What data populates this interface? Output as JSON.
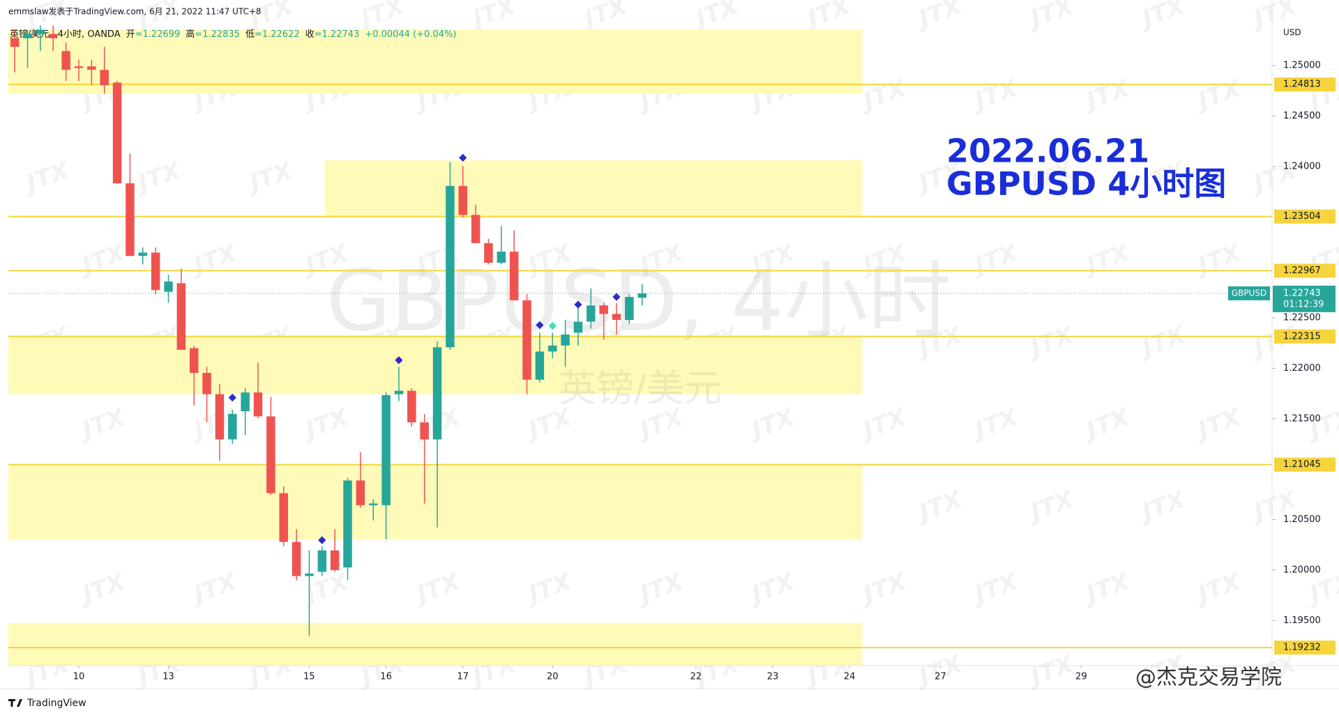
{
  "header": {
    "author_line": "emmslaw发表于TradingView.com,  6月 21, 2022 11:47 UTC+8",
    "symbol_line": "英镑/美元 · 4小时, OANDA",
    "ohlc": [
      {
        "label": "开",
        "value": "=1.22699"
      },
      {
        "label": "高",
        "value": "=1.22835"
      },
      {
        "label": "低",
        "value": "=1.22622"
      },
      {
        "label": "收",
        "value": "=1.22743"
      }
    ],
    "change": "+0.00044 (+0.04%)"
  },
  "footer": {
    "brand": "TradingView",
    "credit": "@杰克交易学院"
  },
  "chart_data": {
    "type": "candlestick",
    "watermark": "GBPUSD, 4小时",
    "watermark_sub": "英镑/美元",
    "logo_watermark": "JTX",
    "annotation": [
      "2022.06.21",
      "GBPUSD 4小时图"
    ],
    "annotation_color": "#1a2ed8",
    "y_unit": "USD",
    "open": [
      1.25271,
      1.25271,
      1.25313,
      1.25313,
      1.25144,
      1.24992,
      1.24992,
      1.24958,
      1.24831,
      1.23833,
      1.23113,
      1.23147,
      1.22758,
      1.22843,
      1.222,
      1.21954,
      1.21743,
      1.21295,
      1.21574,
      1.2176,
      1.21523,
      1.20762,
      1.20279,
      1.19941,
      1.19983,
      1.20195,
      1.20026,
      1.20888,
      1.20643,
      1.20643,
      1.21743,
      1.21777,
      1.21464,
      1.21295,
      1.22208,
      1.23807,
      1.2352,
      1.2324,
      1.23046,
      1.23156,
      1.22674,
      1.21887,
      1.22166,
      1.22225,
      1.22352,
      1.22462,
      1.22623,
      1.22539,
      1.22479,
      1.22699
    ],
    "high": [
      1.25355,
      1.25355,
      1.25398,
      1.25398,
      1.25228,
      1.25059,
      1.25059,
      1.25186,
      1.24848,
      1.24129,
      1.23198,
      1.23198,
      1.22927,
      1.22987,
      1.22225,
      1.22014,
      1.21844,
      1.2159,
      1.21802,
      1.22056,
      1.21717,
      1.20829,
      1.20406,
      1.20195,
      1.20237,
      1.20406,
      1.20914,
      1.21168,
      1.20702,
      1.2176,
      1.22014,
      1.21802,
      1.21548,
      1.22267,
      1.24044,
      1.24002,
      1.23621,
      1.23283,
      1.2341,
      1.23367,
      1.22733,
      1.22352,
      1.22352,
      1.22479,
      1.22648,
      1.22792,
      1.22648,
      1.22648,
      1.22733,
      1.22835
    ],
    "low": [
      1.24932,
      1.24975,
      1.25144,
      1.25144,
      1.24848,
      1.24848,
      1.24805,
      1.24721,
      1.23833,
      1.23113,
      1.23029,
      1.22733,
      1.22648,
      1.22183,
      1.21633,
      1.21464,
      1.21083,
      1.21252,
      1.21337,
      1.21506,
      1.20745,
      1.20237,
      1.19899,
      1.19349,
      1.19941,
      1.19983,
      1.19899,
      1.20618,
      1.20491,
      1.20305,
      1.21675,
      1.21421,
      1.2066,
      1.20423,
      1.22183,
      1.23494,
      1.2324,
      1.23029,
      1.23029,
      1.22674,
      1.21743,
      1.21861,
      1.22098,
      1.22014,
      1.22225,
      1.22394,
      1.22284,
      1.22335,
      1.22437,
      1.22622
    ],
    "close": [
      1.25186,
      1.25313,
      1.25355,
      1.25271,
      1.24958,
      1.24975,
      1.24958,
      1.24805,
      1.23833,
      1.23113,
      1.23147,
      1.22775,
      1.2286,
      1.22183,
      1.21954,
      1.21743,
      1.21295,
      1.21548,
      1.2176,
      1.21523,
      1.20762,
      1.20279,
      1.19941,
      1.19966,
      1.20195,
      1.2,
      1.20888,
      1.20643,
      1.2066,
      1.21734,
      1.21777,
      1.21464,
      1.21295,
      1.22208,
      1.23807,
      1.2352,
      1.2324,
      1.23046,
      1.23156,
      1.22674,
      1.21887,
      1.22166,
      1.22225,
      1.22335,
      1.22462,
      1.22623,
      1.22539,
      1.22479,
      1.22707,
      1.22743
    ],
    "up_color": "#26a69a",
    "down_color": "#ef5350",
    "markers": [
      {
        "index": 17,
        "price": 1.21709,
        "color": "#2b2bc9"
      },
      {
        "index": 24,
        "price": 1.20296,
        "color": "#2b2bc9"
      },
      {
        "index": 30,
        "price": 1.2208,
        "color": "#2b2bc9"
      },
      {
        "index": 35,
        "price": 1.24086,
        "color": "#2b2bc9"
      },
      {
        "index": 41,
        "price": 1.22428,
        "color": "#2b2bc9"
      },
      {
        "index": 42,
        "price": 1.2242,
        "color": "#3ee0b4"
      },
      {
        "index": 44,
        "price": 1.22631,
        "color": "#2b2bc9"
      },
      {
        "index": 47,
        "price": 1.22707,
        "color": "#2b2bc9"
      }
    ],
    "zones": [
      {
        "top": 1.25355,
        "bottom": 1.24721,
        "from": -0.5,
        "to": 66.2
      },
      {
        "top": 1.24061,
        "bottom": 1.23504,
        "from": 24.2,
        "to": 66.2
      },
      {
        "top": 1.22327,
        "bottom": 1.21743,
        "from": -0.5,
        "to": 66.2
      },
      {
        "top": 1.21041,
        "bottom": 1.20305,
        "from": -0.5,
        "to": 66.2
      },
      {
        "top": 1.19476,
        "bottom": 1.19053,
        "from": -0.5,
        "to": 66.2
      }
    ],
    "zone_color": "#fffab8",
    "levels": [
      1.24813,
      1.23504,
      1.22967,
      1.22315,
      1.21045,
      1.19232
    ],
    "level_color": "#f5d43c",
    "current_price": {
      "value": 1.22743,
      "label": "1.22743",
      "symbol": "GBPUSD",
      "countdown": "01:12:39",
      "color": "#26a69a"
    },
    "xlim": [
      -0.5,
      98.2
    ],
    "xticks": [
      {
        "value": 5,
        "label": "10"
      },
      {
        "value": 12,
        "label": "13"
      },
      {
        "value": 23,
        "label": "15"
      },
      {
        "value": 29,
        "label": "16"
      },
      {
        "value": 35,
        "label": "17"
      },
      {
        "value": 42,
        "label": "20"
      },
      {
        "value": 53.2,
        "label": "22"
      },
      {
        "value": 59.2,
        "label": "23"
      },
      {
        "value": 65.2,
        "label": "24"
      },
      {
        "value": 72.3,
        "label": "27"
      },
      {
        "value": 83.3,
        "label": "29"
      }
    ],
    "ylim": [
      1.19053,
      1.25415
    ],
    "yticks": [
      {
        "value": 1.25,
        "label": "1.25000"
      },
      {
        "value": 1.245,
        "label": "1.24500"
      },
      {
        "value": 1.24,
        "label": "1.24000"
      },
      {
        "value": 1.225,
        "label": "1.22500"
      },
      {
        "value": 1.22,
        "label": "1.22000"
      },
      {
        "value": 1.215,
        "label": "1.21500"
      },
      {
        "value": 1.205,
        "label": "1.20500"
      },
      {
        "value": 1.2,
        "label": "1.20000"
      },
      {
        "value": 1.195,
        "label": "1.19500"
      }
    ],
    "grid": false
  }
}
